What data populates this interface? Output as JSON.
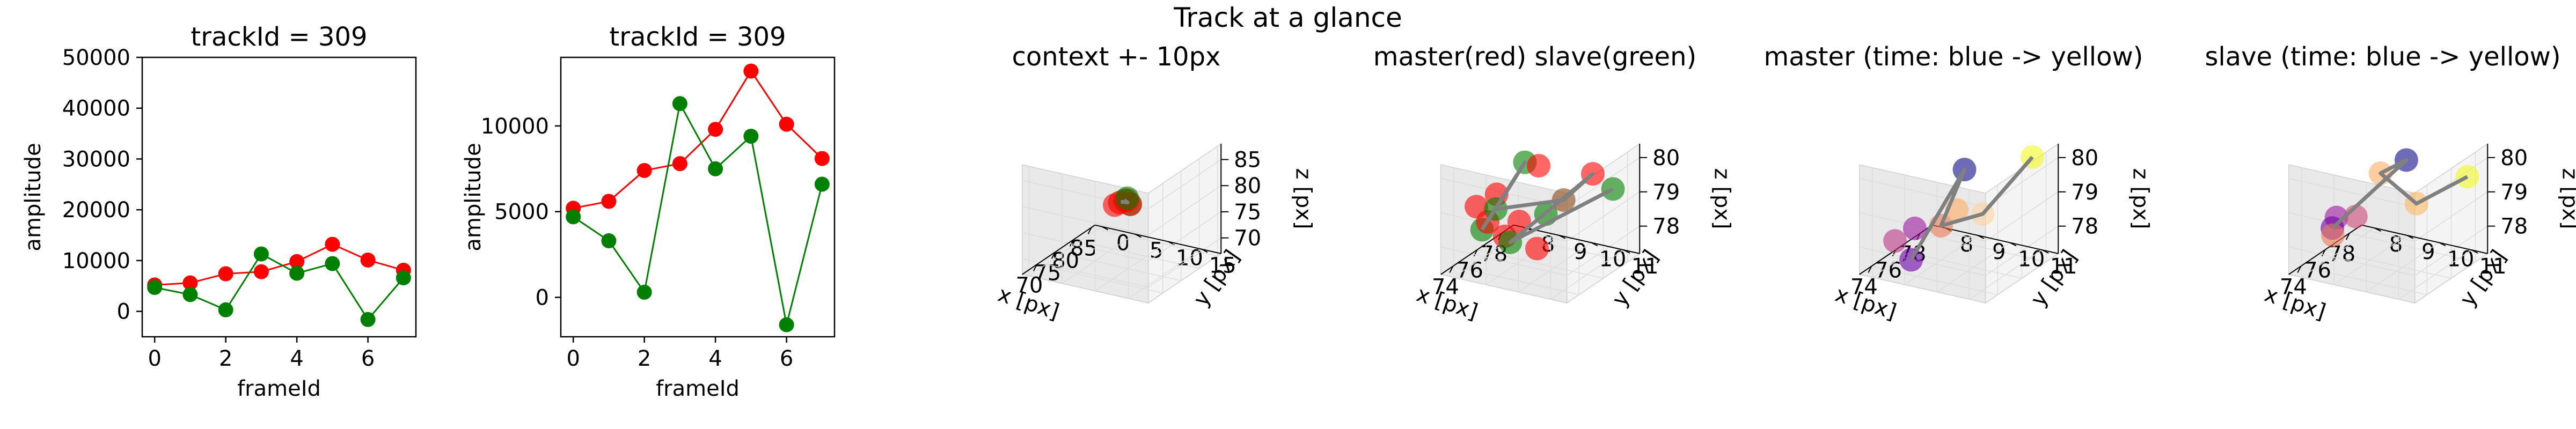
{
  "suptitle": "Track at a glance",
  "colors": {
    "red": "#ff0000",
    "green": "#008000",
    "line_gray": "#808080",
    "pane_fill": "#f2f2f2",
    "grid": "#dddddd"
  },
  "chart_data": [
    {
      "type": "line",
      "title": "trackId = 309",
      "xlabel": "frameId",
      "ylabel": "amplitude",
      "xlim": [
        -0.35,
        7.35
      ],
      "ylim": [
        -5000,
        50000
      ],
      "xticks": [
        0,
        2,
        4,
        6
      ],
      "yticks": [
        0,
        10000,
        20000,
        30000,
        40000,
        50000
      ],
      "x": [
        0,
        1,
        2,
        3,
        4,
        5,
        6,
        7
      ],
      "series": [
        {
          "color": "#ff0000",
          "values": [
            5200,
            5600,
            7400,
            7800,
            9800,
            13200,
            10100,
            8100
          ]
        },
        {
          "color": "#008000",
          "values": [
            4700,
            3300,
            300,
            11300,
            7500,
            9400,
            -1600,
            6600
          ]
        }
      ]
    },
    {
      "type": "line",
      "title": "trackId = 309",
      "xlabel": "frameId",
      "ylabel": "amplitude",
      "xlim": [
        -0.35,
        7.35
      ],
      "ylim": [
        -2300,
        14000
      ],
      "xticks": [
        0,
        2,
        4,
        6
      ],
      "yticks": [
        0,
        5000,
        10000
      ],
      "x": [
        0,
        1,
        2,
        3,
        4,
        5,
        6,
        7
      ],
      "series": [
        {
          "color": "#ff0000",
          "values": [
            5200,
            5600,
            7400,
            7800,
            9800,
            13200,
            10100,
            8100
          ]
        },
        {
          "color": "#008000",
          "values": [
            4700,
            3300,
            300,
            11300,
            7500,
            9400,
            -1600,
            6600
          ]
        }
      ]
    },
    {
      "type": "scatter3d",
      "title": "context +- 10px",
      "xlabel": "x [px]",
      "ylabel": "y [px]",
      "zlabel": "z [px]",
      "xlim": [
        66,
        86
      ],
      "ylim": [
        -1,
        18
      ],
      "zlim": [
        67,
        88
      ],
      "xticks": [
        70,
        75,
        80,
        85
      ],
      "yticks": [
        0,
        5,
        10,
        15
      ],
      "zticks": [
        70,
        75,
        80,
        85
      ],
      "points": [
        {
          "x": 75.5,
          "y": 8.5,
          "z": 79,
          "color": "#ff0000"
        },
        {
          "x": 76.2,
          "y": 9.2,
          "z": 79.3,
          "color": "#ff0000"
        },
        {
          "x": 75,
          "y": 8,
          "z": 78.6,
          "color": "#ff0000"
        },
        {
          "x": 76.5,
          "y": 9.5,
          "z": 78.5,
          "color": "#ff0000"
        },
        {
          "x": 74.5,
          "y": 9,
          "z": 79.6,
          "color": "#90ee90"
        },
        {
          "x": 76,
          "y": 9.8,
          "z": 78.8,
          "color": "#008000"
        },
        {
          "x": 77,
          "y": 8.8,
          "z": 79.2,
          "color": "#008000"
        },
        {
          "x": 75.2,
          "y": 9.4,
          "z": 79.8,
          "color": "#008000"
        }
      ],
      "path": [
        {
          "x": 75.2,
          "y": 8.8,
          "z": 79.4
        },
        {
          "x": 76.2,
          "y": 9.3,
          "z": 78.9
        },
        {
          "x": 75.6,
          "y": 9.1,
          "z": 79.6
        }
      ]
    },
    {
      "type": "scatter3d",
      "title": "master(red) slave(green)",
      "xlabel": "x [px]",
      "ylabel": "y [px]",
      "zlabel": "z [px]",
      "xlim": [
        73,
        79
      ],
      "ylim": [
        7.6,
        11.5
      ],
      "zlim": [
        77.2,
        80.4
      ],
      "xticks": [
        74,
        76,
        78
      ],
      "yticks": [
        8,
        9,
        10,
        11
      ],
      "zticks": [
        78,
        79,
        80
      ],
      "points": [
        {
          "x": 74.6,
          "y": 8.1,
          "z": 78.9,
          "color": "#ff0000"
        },
        {
          "x": 75.0,
          "y": 8.3,
          "z": 78.4,
          "color": "#ff0000"
        },
        {
          "x": 75.6,
          "y": 8.6,
          "z": 77.9,
          "color": "#ff0000"
        },
        {
          "x": 76.0,
          "y": 8.9,
          "z": 78.3,
          "color": "#ff0000"
        },
        {
          "x": 76.4,
          "y": 9.3,
          "z": 77.5,
          "color": "#ff0000"
        },
        {
          "x": 76.8,
          "y": 9.2,
          "z": 79.8,
          "color": "#ff0000"
        },
        {
          "x": 75.2,
          "y": 8.5,
          "z": 79.2,
          "color": "#ff0000"
        },
        {
          "x": 77.8,
          "y": 10.5,
          "z": 79.6,
          "color": "#ff0000"
        },
        {
          "x": 74.8,
          "y": 8.2,
          "z": 78.2,
          "color": "#008000"
        },
        {
          "x": 75.4,
          "y": 8.4,
          "z": 78.7,
          "color": "#008000"
        },
        {
          "x": 76.2,
          "y": 9.0,
          "z": 80.0,
          "color": "#008000"
        },
        {
          "x": 76.6,
          "y": 9.5,
          "z": 78.5,
          "color": "#008000"
        },
        {
          "x": 78.4,
          "y": 10.9,
          "z": 79.1,
          "color": "#008000"
        },
        {
          "x": 75.8,
          "y": 8.7,
          "z": 77.7,
          "color": "#008000"
        },
        {
          "x": 77.0,
          "y": 9.9,
          "z": 78.9,
          "color": "#8b4513"
        }
      ],
      "path": [
        {
          "x": 74.8,
          "y": 8.2,
          "z": 78.2
        },
        {
          "x": 76.2,
          "y": 9.0,
          "z": 80.0
        },
        {
          "x": 75.4,
          "y": 8.4,
          "z": 78.7
        },
        {
          "x": 77.0,
          "y": 9.9,
          "z": 78.9
        },
        {
          "x": 77.8,
          "y": 10.5,
          "z": 79.6
        },
        {
          "x": 75.8,
          "y": 8.7,
          "z": 77.7
        },
        {
          "x": 78.4,
          "y": 10.9,
          "z": 79.1
        }
      ]
    },
    {
      "type": "scatter3d",
      "title": "master (time: blue -> yellow)",
      "xlabel": "x [px]",
      "ylabel": "y [px]",
      "zlabel": "z [px]",
      "xlim": [
        73,
        79
      ],
      "ylim": [
        7.6,
        11.5
      ],
      "zlim": [
        77.2,
        80.4
      ],
      "xticks": [
        74,
        76,
        78
      ],
      "yticks": [
        8,
        9,
        10,
        11
      ],
      "zticks": [
        78,
        79,
        80
      ],
      "points": [
        {
          "x": 76.6,
          "y": 9.5,
          "z": 79.8,
          "color": "#0d0887"
        },
        {
          "x": 75.4,
          "y": 8.3,
          "z": 77.2,
          "color": "#6a00a8"
        },
        {
          "x": 74.9,
          "y": 8.6,
          "z": 78.3,
          "color": "#9c179e"
        },
        {
          "x": 74.6,
          "y": 8.1,
          "z": 77.9,
          "color": "#bd3786"
        },
        {
          "x": 76.0,
          "y": 9.0,
          "z": 78.2,
          "color": "#ed7953"
        },
        {
          "x": 76.5,
          "y": 9.3,
          "z": 78.6,
          "color": "#fdae61"
        },
        {
          "x": 77.3,
          "y": 9.8,
          "z": 78.4,
          "color": "#fdd49e"
        },
        {
          "x": 78.2,
          "y": 11.0,
          "z": 80.1,
          "color": "#f0f921"
        }
      ],
      "path": [
        {
          "x": 75.4,
          "y": 8.3,
          "z": 77.2
        },
        {
          "x": 76.6,
          "y": 9.5,
          "z": 79.8
        },
        {
          "x": 76.0,
          "y": 9.0,
          "z": 78.2
        },
        {
          "x": 77.3,
          "y": 9.8,
          "z": 78.4
        },
        {
          "x": 78.2,
          "y": 11.0,
          "z": 80.1
        }
      ]
    },
    {
      "type": "scatter3d",
      "title": "slave (time: blue -> yellow)",
      "xlabel": "x [px]",
      "ylabel": "y [px]",
      "zlabel": "z [px]",
      "xlim": [
        73,
        79
      ],
      "ylim": [
        7.6,
        11.5
      ],
      "zlim": [
        77.2,
        80.4
      ],
      "xticks": [
        74,
        76,
        78
      ],
      "yticks": [
        8,
        9,
        10,
        11
      ],
      "zticks": [
        78,
        79,
        80
      ],
      "points": [
        {
          "x": 77.1,
          "y": 9.7,
          "z": 80.0,
          "color": "#0d0887"
        },
        {
          "x": 75.0,
          "y": 8.2,
          "z": 78.2,
          "color": "#6a00a8"
        },
        {
          "x": 74.8,
          "y": 8.4,
          "z": 78.6,
          "color": "#9c179e"
        },
        {
          "x": 75.6,
          "y": 8.7,
          "z": 78.5,
          "color": "#cc4778"
        },
        {
          "x": 75.3,
          "y": 8.1,
          "z": 77.9,
          "color": "#ed7953"
        },
        {
          "x": 76.3,
          "y": 9.2,
          "z": 79.7,
          "color": "#fdae61"
        },
        {
          "x": 77.4,
          "y": 9.9,
          "z": 78.7,
          "color": "#fdb863"
        },
        {
          "x": 78.4,
          "y": 11.1,
          "z": 79.5,
          "color": "#f0f921"
        }
      ],
      "path": [
        {
          "x": 75.0,
          "y": 8.2,
          "z": 78.2
        },
        {
          "x": 77.1,
          "y": 9.7,
          "z": 80.0
        },
        {
          "x": 76.3,
          "y": 9.2,
          "z": 79.7
        },
        {
          "x": 77.4,
          "y": 9.9,
          "z": 78.7
        },
        {
          "x": 78.4,
          "y": 11.1,
          "z": 79.5
        }
      ]
    }
  ]
}
